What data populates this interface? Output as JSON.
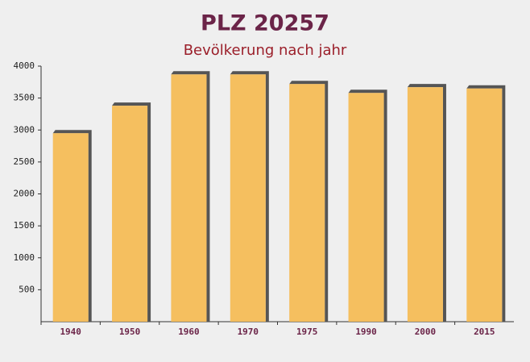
{
  "chart_data": {
    "type": "bar",
    "title": "PLZ 20257",
    "subtitle": "Bevölkerung nach jahr",
    "categories": [
      "1940",
      "1950",
      "1960",
      "1970",
      "1975",
      "1990",
      "2000",
      "2015"
    ],
    "values": [
      2950,
      3380,
      3870,
      3870,
      3720,
      3580,
      3670,
      3650
    ],
    "color": "#f5b94f",
    "ylim": [
      0,
      4000
    ],
    "yticks": [
      500,
      1000,
      1500,
      2000,
      2500,
      3000,
      3500,
      4000
    ]
  }
}
